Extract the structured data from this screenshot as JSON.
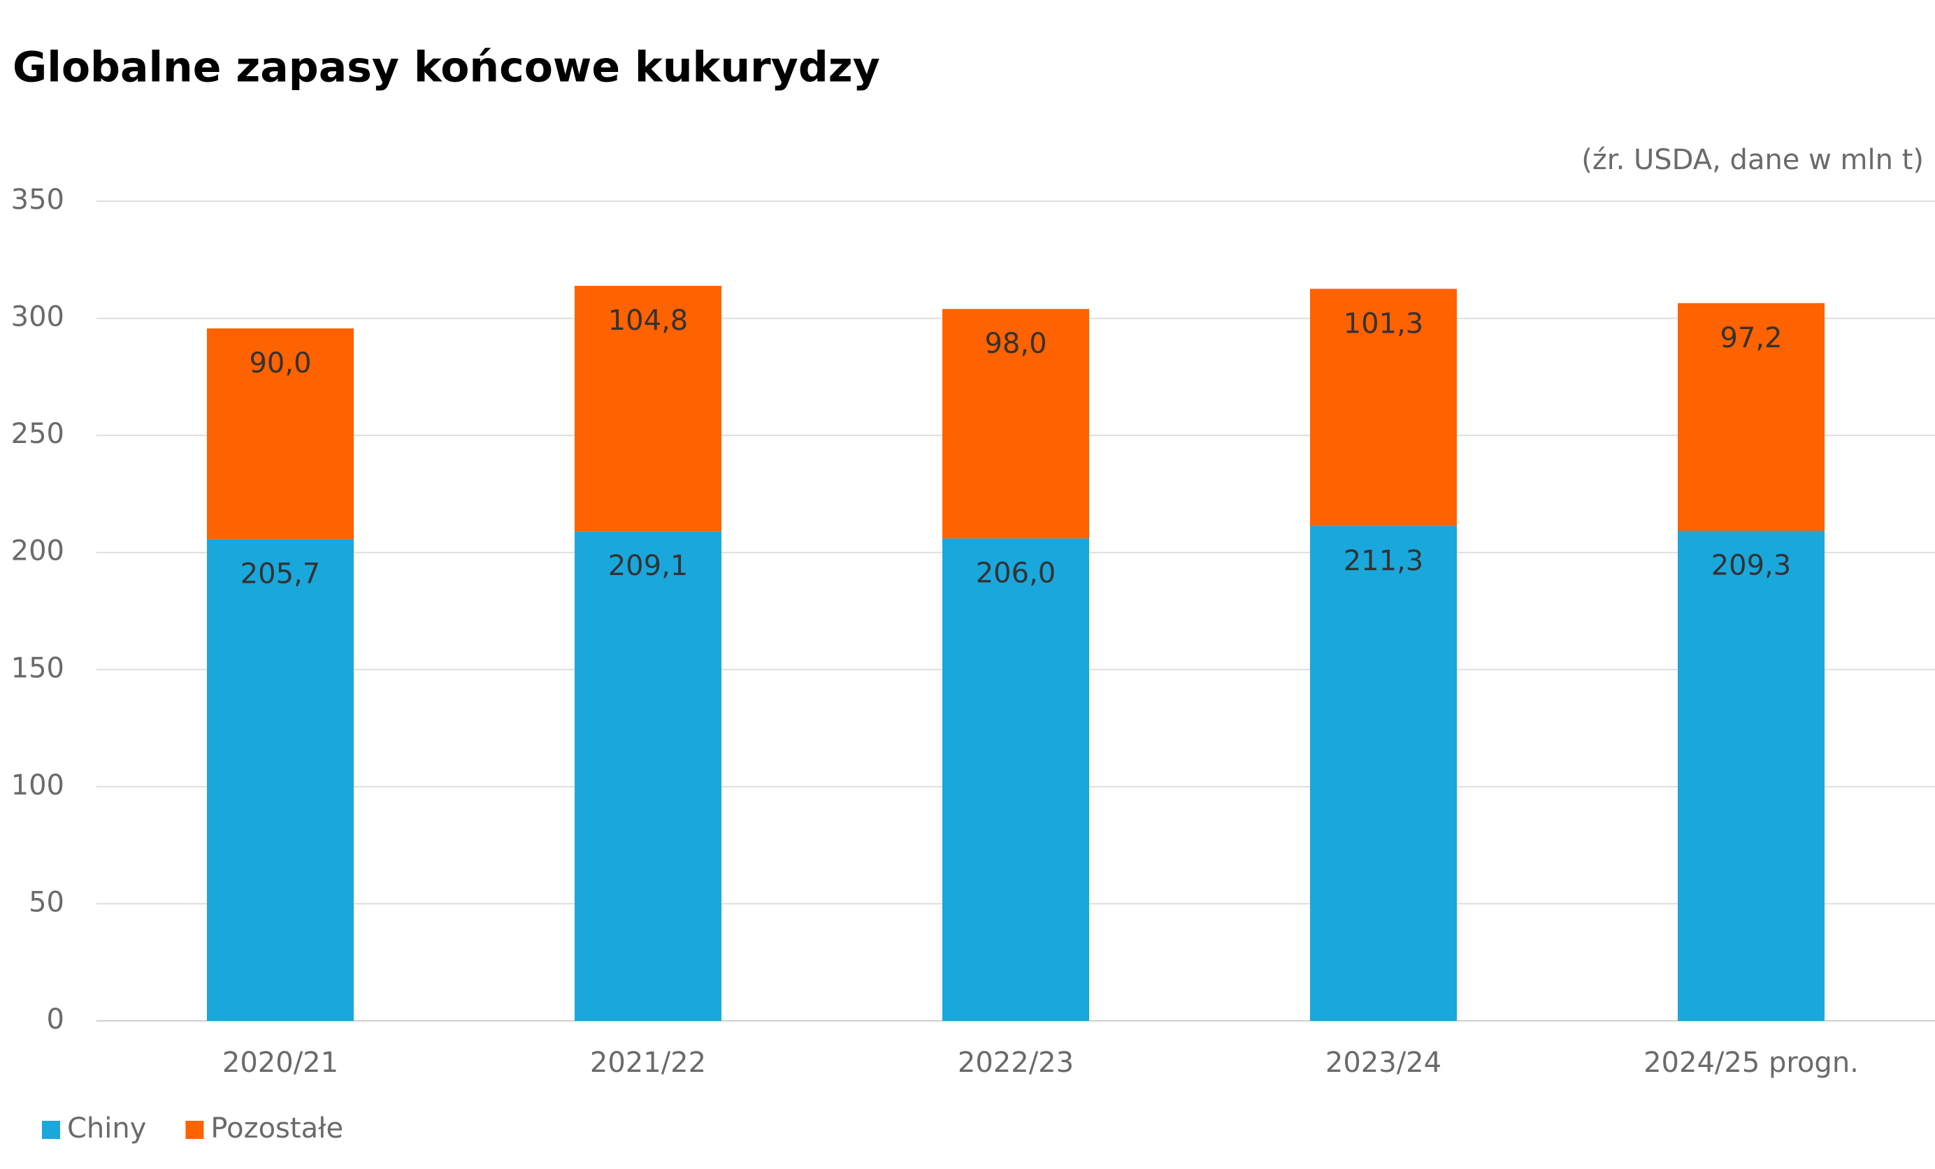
{
  "chart_data": {
    "type": "stacked_bar",
    "title": "Globalne zapasy końcowe kukurydzy",
    "note": "(źr. USDA, dane w mln t)",
    "categories": [
      "2020/21",
      "2021/22",
      "2022/23",
      "2023/24",
      "2024/25 progn."
    ],
    "series": [
      {
        "name": "Chiny",
        "color": "#1aa7dc",
        "values": [
          205.7,
          209.1,
          206.0,
          211.3,
          209.3
        ],
        "value_labels": [
          "205,7",
          "209,1",
          "206,0",
          "211,3",
          "209,3"
        ]
      },
      {
        "name": "Pozostałe",
        "color": "#ff6200",
        "values": [
          90.0,
          104.8,
          98.0,
          101.3,
          97.2
        ],
        "value_labels": [
          "90,0",
          "104,8",
          "98,0",
          "101,3",
          "97,2"
        ]
      }
    ],
    "ylim": [
      0,
      350
    ],
    "yticks": [
      0,
      50,
      100,
      150,
      200,
      250,
      300,
      350
    ],
    "grid": true,
    "legend": "bottom-left"
  }
}
